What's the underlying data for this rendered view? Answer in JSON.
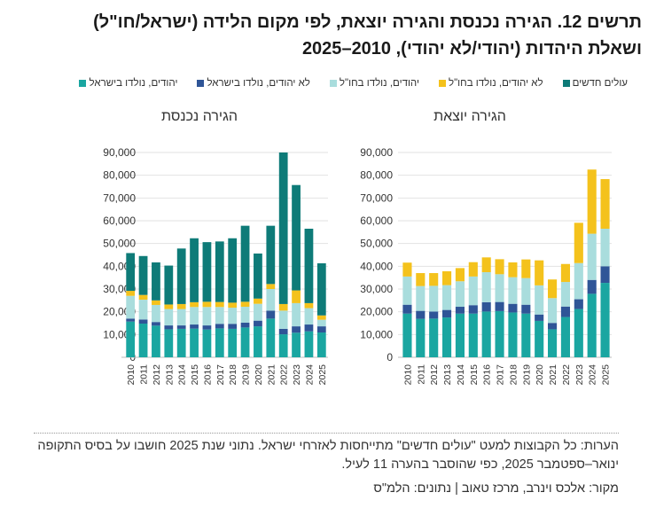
{
  "title": "תרשים 12. הגירה נכנסת והגירה יוצאת, לפי מקום הלידה (ישראל/חו\"ל) ושאלת היהדות (יהודי/לא יהודי), 2010–2025",
  "legend": [
    {
      "label": "עולים חדשים",
      "color": "#0e7b78"
    },
    {
      "label": "לא יהודים, נולדו בחו\"ל",
      "color": "#f4c21c"
    },
    {
      "label": "יהודים, נולדו בחו\"ל",
      "color": "#a9dddd"
    },
    {
      "label": "לא יהודים, נולדו בישראל",
      "color": "#2f5597"
    },
    {
      "label": "יהודים, נולדו בישראל",
      "color": "#1aa6a1"
    }
  ],
  "notes": "הערות: כל הקבוצות למעט \"עולים חדשים\" מתייחסות לאזרחי ישראל. נתוני שנת 2025 חושבו על בסיס התקופה ינואר–ספטמבר 2025, כפי שהוסבר בהערה 11 לעיל.",
  "source": "מקור: אלכס וינרב, מרכז טאוב | נתונים: הלמ\"ס",
  "chart_data": [
    {
      "type": "bar",
      "stacked": true,
      "title": "הגירה נכנסת",
      "categories": [
        "2010",
        "2011",
        "2012",
        "2013",
        "2014",
        "2015",
        "2016",
        "2017",
        "2018",
        "2019",
        "2020",
        "2021",
        "2022",
        "2023",
        "2024",
        "2025"
      ],
      "ylim": [
        0,
        90000
      ],
      "yticks": [
        "0",
        "10,000",
        "20,000",
        "30,000",
        "40,000",
        "50,000",
        "60,000",
        "70,000",
        "80,000",
        "90,000"
      ],
      "grid": true,
      "series": [
        {
          "name": "יהודים, נולדו בישראל",
          "values": [
            15700,
            14800,
            13900,
            12300,
            12500,
            12600,
            12200,
            12700,
            12500,
            13100,
            13600,
            17000,
            10100,
            10800,
            11400,
            10900
          ]
        },
        {
          "name": "לא יהודים, נולדו בישראל",
          "values": [
            1300,
            1800,
            1600,
            1700,
            1500,
            1800,
            1800,
            2000,
            2200,
            2100,
            2500,
            3500,
            2400,
            2800,
            3000,
            2700
          ]
        },
        {
          "name": "יהודים, נולדו בחו\"ל",
          "values": [
            10000,
            8700,
            7500,
            7200,
            7200,
            7700,
            8100,
            7400,
            7100,
            7000,
            7400,
            9500,
            8000,
            10200,
            7200,
            2900
          ]
        },
        {
          "name": "לא יהודים, נולדו בחו\"ל",
          "values": [
            2200,
            2100,
            2000,
            2000,
            2200,
            2100,
            2300,
            2200,
            2200,
            2200,
            2300,
            2200,
            2900,
            5600,
            2200,
            1900
          ]
        },
        {
          "name": "עולים חדשים",
          "values": [
            16600,
            17100,
            16700,
            17100,
            24400,
            28100,
            26200,
            26600,
            28300,
            33400,
            19800,
            25600,
            66600,
            46300,
            32700,
            22900
          ]
        }
      ]
    },
    {
      "type": "bar",
      "stacked": true,
      "title": "הגירה יוצאת",
      "categories": [
        "2010",
        "2011",
        "2012",
        "2013",
        "2014",
        "2015",
        "2016",
        "2017",
        "2018",
        "2019",
        "2020",
        "2021",
        "2022",
        "2023",
        "2024",
        "2025"
      ],
      "ylim": [
        0,
        90000
      ],
      "yticks": [
        "0",
        "10,000",
        "20,000",
        "30,000",
        "40,000",
        "50,000",
        "60,000",
        "70,000",
        "80,000",
        "90,000"
      ],
      "grid": true,
      "series": [
        {
          "name": "יהודים, נולדו בישראל",
          "values": [
            19200,
            16900,
            17000,
            17500,
            19200,
            19200,
            20100,
            20300,
            19700,
            19200,
            16000,
            12300,
            17700,
            21200,
            27900,
            32700
          ]
        },
        {
          "name": "לא יהודים, נולדו בישראל",
          "values": [
            3900,
            3500,
            3100,
            3300,
            3000,
            3700,
            4100,
            4000,
            3800,
            3900,
            2800,
            2800,
            4600,
            4300,
            6100,
            7300
          ]
        },
        {
          "name": "יהודים, נולדו בחו\"ל",
          "values": [
            12400,
            10900,
            11300,
            10900,
            11200,
            12600,
            13200,
            12200,
            11700,
            11700,
            12800,
            10900,
            10800,
            15900,
            20300,
            16500
          ]
        },
        {
          "name": "לא יהודים, נולדו בחו\"ל",
          "values": [
            6100,
            5700,
            5600,
            6100,
            5800,
            6300,
            6500,
            6600,
            6500,
            8200,
            11000,
            8200,
            7900,
            17700,
            28200,
            21800
          ]
        },
        {
          "name": "עולים חדשים",
          "values": [
            0,
            0,
            0,
            0,
            0,
            0,
            0,
            0,
            0,
            0,
            0,
            0,
            0,
            0,
            0,
            0
          ]
        }
      ]
    }
  ]
}
